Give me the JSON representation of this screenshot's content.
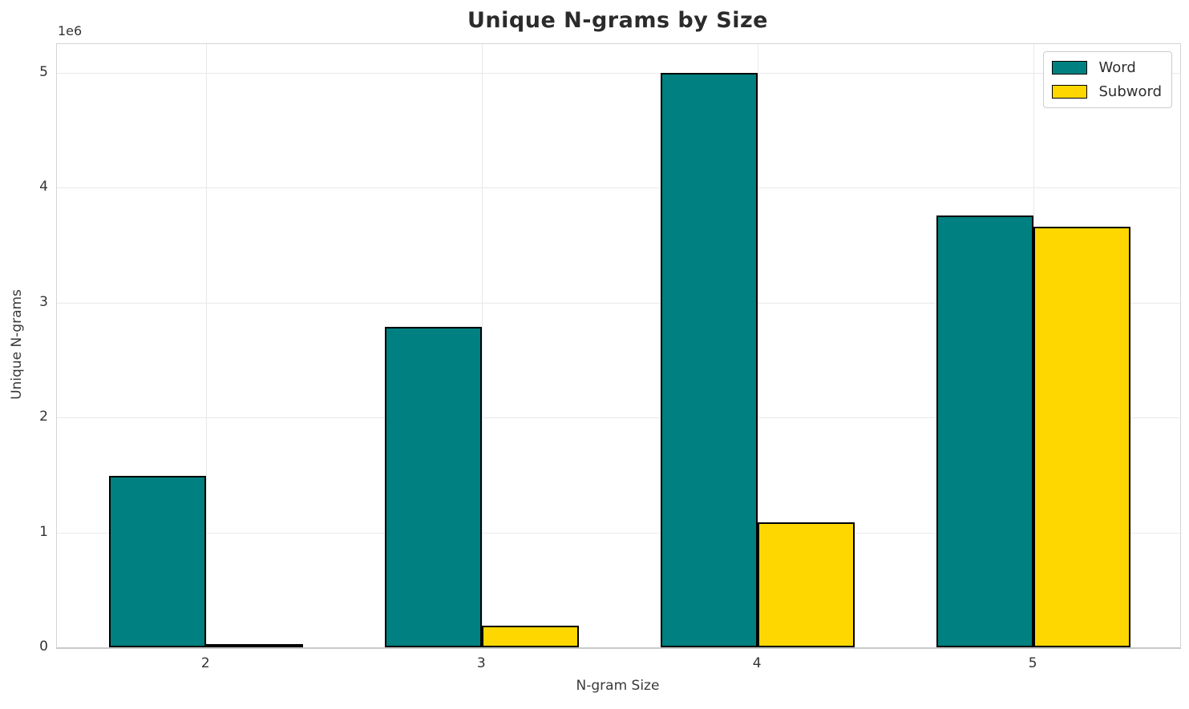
{
  "chart_data": {
    "type": "bar",
    "title": "Unique N-grams by Size",
    "xlabel": "N-gram Size",
    "ylabel": "Unique N-grams",
    "offset_text": "1e6",
    "categories": [
      "2",
      "3",
      "4",
      "5"
    ],
    "series": [
      {
        "name": "Word",
        "color": "#008080",
        "values": [
          1490000,
          2790000,
          5000000,
          3760000
        ]
      },
      {
        "name": "Subword",
        "color": "#FFD700",
        "values": [
          30000,
          190000,
          1090000,
          3660000
        ]
      }
    ],
    "ylim": [
      0,
      5250000
    ],
    "yticks": [
      0,
      1000000,
      2000000,
      3000000,
      4000000,
      5000000
    ],
    "ytick_labels": [
      "0",
      "1",
      "2",
      "3",
      "4",
      "5"
    ],
    "grid": true,
    "legend_position": "upper right",
    "bar_edge_color": "#000000",
    "colors": {
      "word": "#008080",
      "subword": "#FFD700",
      "grid": "#e9e9e9",
      "text": "#333333"
    }
  }
}
